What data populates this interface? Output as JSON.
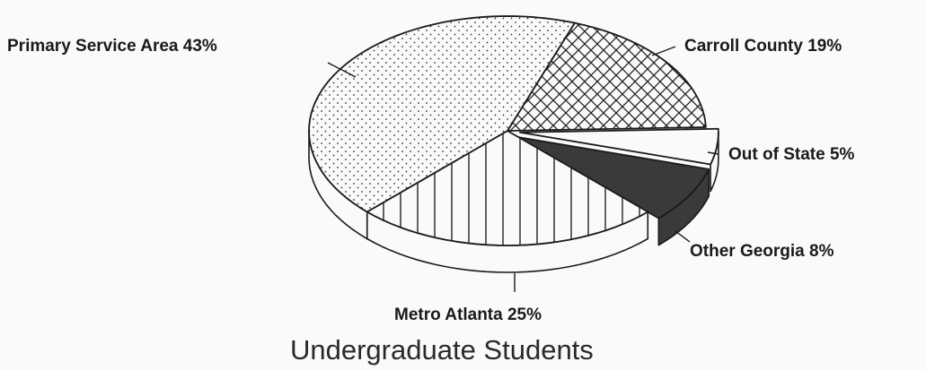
{
  "chart_data": {
    "type": "pie",
    "title": "Undergraduate Students",
    "slices": [
      {
        "label": "Carroll County",
        "value": 19,
        "value_label": "19%",
        "fill": "crosshatch"
      },
      {
        "label": "Out of State",
        "value": 5,
        "value_label": "5%",
        "fill": "white"
      },
      {
        "label": "Other Georgia",
        "value": 8,
        "value_label": "8%",
        "fill": "solid-dark"
      },
      {
        "label": "Metro Atlanta",
        "value": 25,
        "value_label": "25%",
        "fill": "vertical-lines"
      },
      {
        "label": "Primary Service Area",
        "value": 43,
        "value_label": "43%",
        "fill": "dots"
      }
    ],
    "style": "3d-exploded-pie"
  },
  "labels": {
    "primary_service_area": "Primary Service Area  43%",
    "carroll_county": "Carroll County  19%",
    "out_of_state": "Out of State  5%",
    "other_georgia": "Other Georgia  8%",
    "metro_atlanta": "Metro Atlanta  25%"
  },
  "colors": {
    "ink": "#1a1a1a",
    "background": "#fafaf8",
    "dark_slice": "#3a3a3a"
  }
}
